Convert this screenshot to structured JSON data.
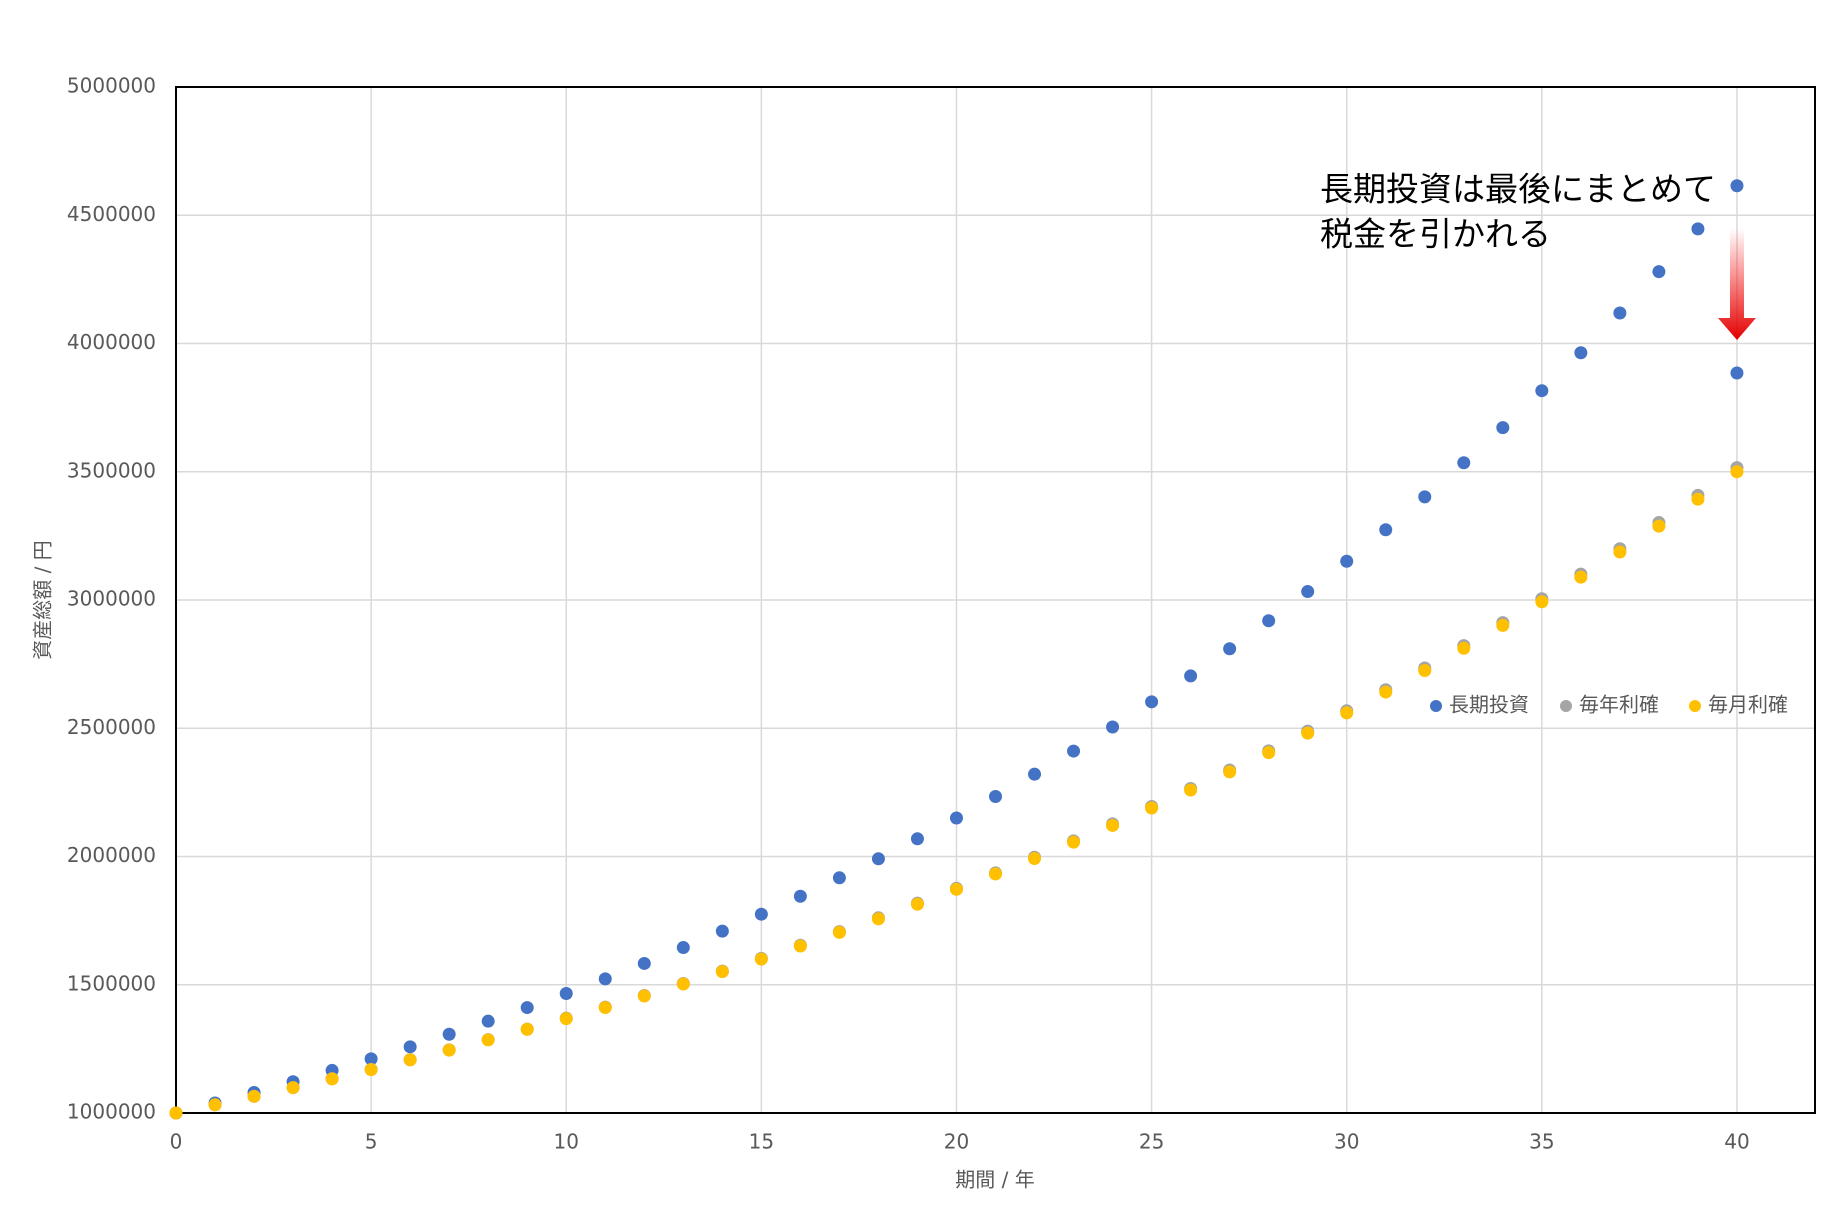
{
  "chart_data": {
    "type": "scatter",
    "xlabel": "期間 / 年",
    "ylabel": "資産総額 / 円",
    "annotation": [
      "長期投資は最後にまとめて",
      "税金を引かれる"
    ],
    "xlim": [
      0,
      42
    ],
    "xticks": [
      0,
      5,
      10,
      15,
      20,
      25,
      30,
      35,
      40
    ],
    "ylim": [
      1000000,
      5000000
    ],
    "yticks": [
      1000000,
      1500000,
      2000000,
      2500000,
      3000000,
      3500000,
      4000000,
      4500000,
      5000000
    ],
    "grid": true,
    "legend": "right",
    "series": [
      {
        "name": "長期投資",
        "color": "#4472c4",
        "x": [
          0,
          1,
          2,
          3,
          4,
          5,
          6,
          7,
          8,
          9,
          10,
          11,
          12,
          13,
          14,
          15,
          16,
          17,
          18,
          19,
          20,
          21,
          22,
          23,
          24,
          25,
          26,
          27,
          28,
          29,
          30,
          31,
          32,
          33,
          34,
          35,
          36,
          37,
          38,
          39,
          40,
          40
        ],
        "values": [
          1000000,
          1039000,
          1080000,
          1122000,
          1166000,
          1211000,
          1258000,
          1307000,
          1358000,
          1411000,
          1466000,
          1523000,
          1583000,
          1645000,
          1709000,
          1775000,
          1845000,
          1917000,
          1991000,
          2069000,
          2150000,
          2234000,
          2321000,
          2411000,
          2505000,
          2603000,
          2704000,
          2810000,
          2919000,
          3033000,
          3151000,
          3274000,
          3402000,
          3535000,
          3672000,
          3816000,
          3964000,
          4119000,
          4280000,
          4447000,
          4615000,
          3885000
        ]
      },
      {
        "name": "毎年利確",
        "color": "#a5a5a5",
        "x": [
          0,
          1,
          2,
          3,
          4,
          5,
          6,
          7,
          8,
          9,
          10,
          11,
          12,
          13,
          14,
          15,
          16,
          17,
          18,
          19,
          20,
          21,
          22,
          23,
          24,
          25,
          26,
          27,
          28,
          29,
          30,
          31,
          32,
          33,
          34,
          35,
          36,
          37,
          38,
          39,
          40
        ],
        "values": [
          1000000,
          1032000,
          1065000,
          1099000,
          1134000,
          1170000,
          1208000,
          1246000,
          1286000,
          1327000,
          1370000,
          1413000,
          1458000,
          1505000,
          1553000,
          1603000,
          1654000,
          1707000,
          1761000,
          1818000,
          1876000,
          1936000,
          1997000,
          2061000,
          2127000,
          2195000,
          2265000,
          2337000,
          2412000,
          2489000,
          2568000,
          2650000,
          2735000,
          2822000,
          2912000,
          3005000,
          3101000,
          3200000,
          3302000,
          3408000,
          3516000
        ]
      },
      {
        "name": "毎月利確",
        "color": "#ffc000",
        "x": [
          0,
          1,
          2,
          3,
          4,
          5,
          6,
          7,
          8,
          9,
          10,
          11,
          12,
          13,
          14,
          15,
          16,
          17,
          18,
          19,
          20,
          21,
          22,
          23,
          24,
          25,
          26,
          27,
          28,
          29,
          30,
          31,
          32,
          33,
          34,
          35,
          36,
          37,
          38,
          39,
          40
        ],
        "values": [
          1000000,
          1032000,
          1065000,
          1099000,
          1133000,
          1169000,
          1207000,
          1245000,
          1285000,
          1326000,
          1368000,
          1411000,
          1456000,
          1503000,
          1551000,
          1600000,
          1651000,
          1704000,
          1757000,
          1814000,
          1872000,
          1932000,
          1992000,
          2056000,
          2121000,
          2189000,
          2259000,
          2330000,
          2405000,
          2481000,
          2560000,
          2641000,
          2725000,
          2812000,
          2901000,
          2993000,
          3089000,
          3187000,
          3288000,
          3393000,
          3500000
        ]
      }
    ]
  }
}
